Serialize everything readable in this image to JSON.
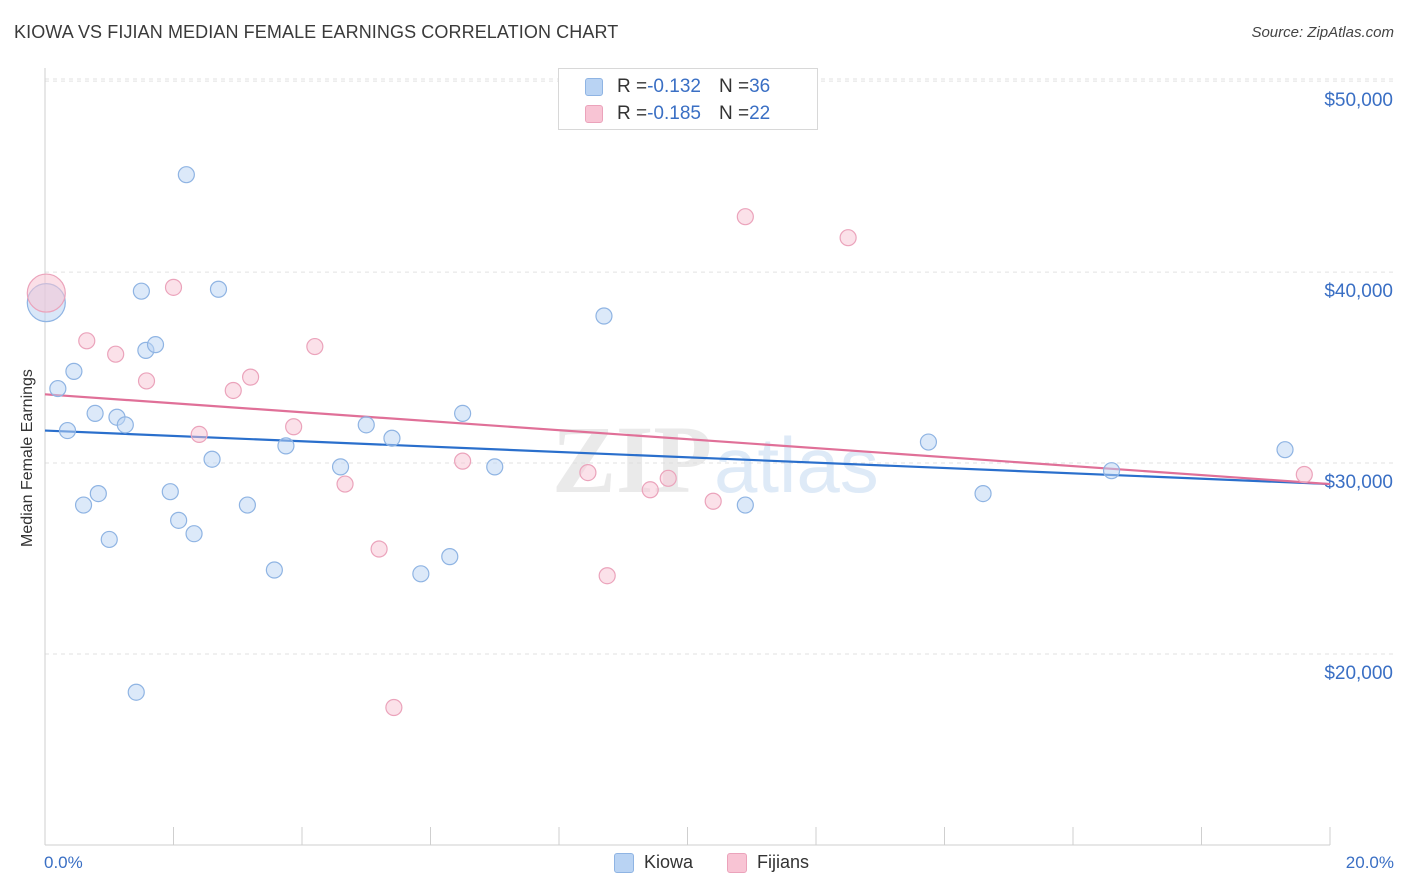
{
  "header": {
    "title": "KIOWA VS FIJIAN MEDIAN FEMALE EARNINGS CORRELATION CHART",
    "source": "Source: ZipAtlas.com"
  },
  "watermark": {
    "zip": "ZIP",
    "atlas": "atlas"
  },
  "legend": {
    "rows": [
      {
        "r_label": "R = ",
        "r_value": "-0.132",
        "n_label": "N = ",
        "n_value": "36"
      },
      {
        "r_label": "R = ",
        "r_value": "-0.185",
        "n_label": "N = ",
        "n_value": "22"
      }
    ]
  },
  "colors": {
    "kiowa_fill": "#b9d3f3",
    "kiowa_stroke": "#8fb4e3",
    "kiowa_line": "#2a6fcc",
    "fijians_fill": "#f8c4d4",
    "fijians_stroke": "#eba3bb",
    "fijians_line": "#e07098",
    "axis_label": "#3a6fc4",
    "grid": "#e2e2e2"
  },
  "chart_data": {
    "type": "scatter",
    "title": "KIOWA VS FIJIAN MEDIAN FEMALE EARNINGS CORRELATION CHART",
    "xlabel": "",
    "ylabel": "Median Female Earnings",
    "xlim": [
      0,
      20
    ],
    "ylim": [
      10000,
      51000
    ],
    "x_tick_labels": [
      "0.0%",
      "20.0%"
    ],
    "y_ticks": [
      {
        "value": 20000,
        "label": "$20,000"
      },
      {
        "value": 30000,
        "label": "$30,000"
      },
      {
        "value": 40000,
        "label": "$40,000"
      },
      {
        "value": 50000,
        "label": "$50,000"
      }
    ],
    "grid": "horizontal dashed",
    "legend_position": "top-center",
    "series": [
      {
        "name": "Kiowa",
        "r": -0.132,
        "n": 36,
        "trend": {
          "x": [
            0,
            20
          ],
          "y": [
            31700,
            28900
          ]
        },
        "points": [
          {
            "x": 0.02,
            "y": 38400,
            "big": true
          },
          {
            "x": 0.2,
            "y": 33900
          },
          {
            "x": 0.35,
            "y": 31700
          },
          {
            "x": 0.45,
            "y": 34800
          },
          {
            "x": 0.6,
            "y": 27800
          },
          {
            "x": 0.78,
            "y": 32600
          },
          {
            "x": 0.83,
            "y": 28400
          },
          {
            "x": 1.0,
            "y": 26000
          },
          {
            "x": 1.12,
            "y": 32400
          },
          {
            "x": 1.25,
            "y": 32000
          },
          {
            "x": 1.42,
            "y": 18000
          },
          {
            "x": 1.5,
            "y": 39000
          },
          {
            "x": 1.57,
            "y": 35900
          },
          {
            "x": 1.72,
            "y": 36200
          },
          {
            "x": 1.95,
            "y": 28500
          },
          {
            "x": 2.08,
            "y": 27000
          },
          {
            "x": 2.2,
            "y": 45100
          },
          {
            "x": 2.32,
            "y": 26300
          },
          {
            "x": 2.6,
            "y": 30200
          },
          {
            "x": 2.7,
            "y": 39100
          },
          {
            "x": 3.15,
            "y": 27800
          },
          {
            "x": 3.57,
            "y": 24400
          },
          {
            "x": 3.75,
            "y": 30900
          },
          {
            "x": 4.6,
            "y": 29800
          },
          {
            "x": 5.0,
            "y": 32000
          },
          {
            "x": 5.4,
            "y": 31300
          },
          {
            "x": 5.85,
            "y": 24200
          },
          {
            "x": 6.3,
            "y": 25100
          },
          {
            "x": 6.5,
            "y": 32600
          },
          {
            "x": 7.0,
            "y": 29800
          },
          {
            "x": 8.7,
            "y": 37700
          },
          {
            "x": 10.9,
            "y": 27800
          },
          {
            "x": 13.75,
            "y": 31100
          },
          {
            "x": 14.6,
            "y": 28400
          },
          {
            "x": 16.6,
            "y": 29600
          },
          {
            "x": 19.3,
            "y": 30700
          }
        ]
      },
      {
        "name": "Fijians",
        "r": -0.185,
        "n": 22,
        "trend": {
          "x": [
            0,
            20
          ],
          "y": [
            33600,
            28900
          ]
        },
        "points": [
          {
            "x": 0.02,
            "y": 38900,
            "big": true
          },
          {
            "x": 0.65,
            "y": 36400
          },
          {
            "x": 1.1,
            "y": 35700
          },
          {
            "x": 1.58,
            "y": 34300
          },
          {
            "x": 2.0,
            "y": 39200
          },
          {
            "x": 2.4,
            "y": 31500
          },
          {
            "x": 2.93,
            "y": 33800
          },
          {
            "x": 3.2,
            "y": 34500
          },
          {
            "x": 3.87,
            "y": 31900
          },
          {
            "x": 4.2,
            "y": 36100
          },
          {
            "x": 4.67,
            "y": 28900
          },
          {
            "x": 5.2,
            "y": 25500
          },
          {
            "x": 5.43,
            "y": 17200
          },
          {
            "x": 6.5,
            "y": 30100
          },
          {
            "x": 8.45,
            "y": 29500
          },
          {
            "x": 8.75,
            "y": 24100
          },
          {
            "x": 9.42,
            "y": 28600
          },
          {
            "x": 9.7,
            "y": 29200
          },
          {
            "x": 10.4,
            "y": 28000
          },
          {
            "x": 10.9,
            "y": 42900
          },
          {
            "x": 12.5,
            "y": 41800
          },
          {
            "x": 19.6,
            "y": 29400
          }
        ]
      }
    ]
  }
}
